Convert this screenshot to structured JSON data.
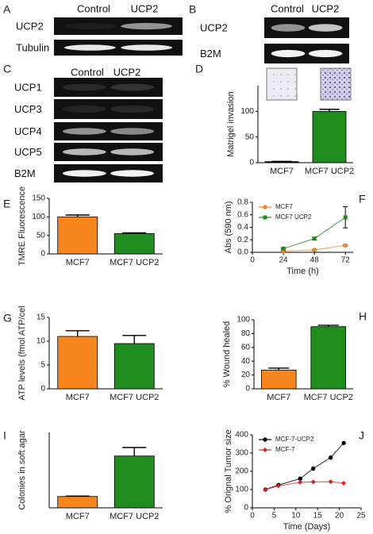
{
  "blots": [
    {
      "panel": "A",
      "columns": [
        "Control",
        "UCP2"
      ],
      "rows": [
        "UCP2",
        "Tubulin"
      ]
    },
    {
      "panel": "B",
      "columns": [
        "Control",
        "UCP2"
      ],
      "rows": [
        "UCP2",
        "B2M"
      ]
    },
    {
      "panel": "C",
      "columns": [
        "Control",
        "UCP2"
      ],
      "rows": [
        "UCP1",
        "UCP3",
        "UCP4",
        "UCP5",
        "B2M"
      ]
    }
  ],
  "chart_data": [
    {
      "type": "bar",
      "panel": "D",
      "ylabel": "Matrigel invasion",
      "categories": [
        "MCF7",
        "MCF7 UCP2"
      ],
      "values": [
        2,
        100
      ],
      "errors": [
        0.5,
        4
      ],
      "colors": [
        "#000000",
        "#1e8c1e"
      ],
      "ylim": [
        0,
        150
      ],
      "yticks": [
        0,
        50,
        100
      ]
    },
    {
      "type": "bar",
      "panel": "E",
      "ylabel": "TMRE Fluorescence",
      "categories": [
        "MCF7",
        "MCF7 UCP2"
      ],
      "values": [
        100,
        55
      ],
      "errors": [
        5,
        2
      ],
      "colors": [
        "#f7861e",
        "#1e8c1e"
      ],
      "ylim": [
        0,
        150
      ],
      "yticks": [
        0,
        50,
        100,
        150
      ]
    },
    {
      "type": "line",
      "panel": "F",
      "ylabel": "Abs (590 nm)",
      "xlabel": "Time (h)",
      "x": [
        24,
        48,
        72
      ],
      "xlim": [
        0,
        78
      ],
      "xticks": [
        0,
        24,
        48,
        72
      ],
      "ylim": [
        0,
        0.8
      ],
      "yticks": [
        {
          "value": 0,
          "label": "0.0"
        },
        0.2,
        0.4,
        0.6,
        0.8
      ],
      "series": [
        {
          "name": "MCF7",
          "color": "#f7861e",
          "marker": "circle",
          "values": [
            0.02,
            0.04,
            0.11
          ],
          "errors": [
            0.005,
            0.005,
            0.01
          ]
        },
        {
          "name": "MCF7 UCP2",
          "color": "#1e8c1e",
          "marker": "square",
          "values": [
            0.06,
            0.22,
            0.56
          ],
          "errors": [
            0.01,
            0.02,
            0.17
          ]
        }
      ]
    },
    {
      "type": "bar",
      "panel": "G",
      "ylabel": "ATP levels (fmol ATP/cel",
      "categories": [
        "MCF7",
        "MCF7 UCP2"
      ],
      "values": [
        11,
        9.5
      ],
      "errors": [
        1.2,
        1.7
      ],
      "colors": [
        "#f7861e",
        "#1e8c1e"
      ],
      "ylim": [
        0,
        15
      ],
      "yticks": [
        0,
        5,
        10,
        15
      ]
    },
    {
      "type": "bar",
      "panel": "H",
      "ylabel": "% Wound healed",
      "categories": [
        "MCF7",
        "MCF7 UCP2"
      ],
      "values": [
        27,
        90
      ],
      "errors": [
        3,
        2
      ],
      "colors": [
        "#f7861e",
        "#1e8c1e"
      ],
      "ylim": [
        0,
        100
      ],
      "yticks": [
        0,
        20,
        40,
        60,
        80,
        100
      ]
    },
    {
      "type": "bar",
      "panel": "I",
      "ylabel": "Colonies in soft agar",
      "categories": [
        "MCF7",
        "MCF7 UCP2"
      ],
      "values": [
        12,
        55
      ],
      "errors": [
        0.5,
        9
      ],
      "colors": [
        "#f7861e",
        "#1e8c1e"
      ],
      "ylim": [
        0,
        80
      ]
    },
    {
      "type": "line",
      "panel": "J",
      "ylabel": "% Orignal Tumor size",
      "xlabel": "Time (Days)",
      "x": [
        3,
        6,
        11,
        14,
        18,
        21
      ],
      "xlim": [
        0,
        25
      ],
      "xticks": [
        0,
        5,
        10,
        15,
        20,
        25
      ],
      "ylim": [
        0,
        400
      ],
      "yticks": [
        0,
        100,
        200,
        300,
        400
      ],
      "series": [
        {
          "name": "MCF-7-UCP2",
          "color": "#000000",
          "marker": "circle",
          "values": [
            100,
            125,
            160,
            215,
            275,
            355
          ]
        },
        {
          "name": "MCF-7",
          "color": "#d62020",
          "marker": "diamond",
          "values": [
            100,
            120,
            140,
            142,
            143,
            135
          ]
        }
      ]
    }
  ]
}
